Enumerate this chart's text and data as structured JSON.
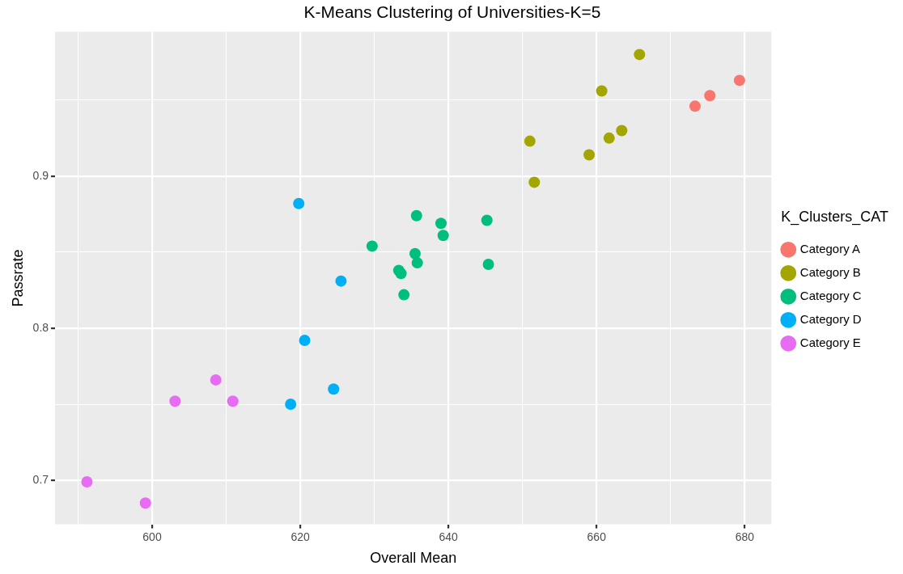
{
  "chart_data": {
    "type": "scatter",
    "title": "K-Means Clustering of Universities-K=5",
    "xlabel": "Overall Mean",
    "ylabel": "Passrate",
    "legend_title": "K_Clusters_CAT",
    "legend": "right",
    "marker": "circle",
    "grid": true,
    "xlim": [
      586.9,
      683.6
    ],
    "ylim": [
      0.671,
      0.995
    ],
    "xticks": [
      {
        "value": 590,
        "label": null
      },
      600,
      {
        "value": 610,
        "label": null
      },
      620,
      {
        "value": 630,
        "label": null
      },
      640,
      {
        "value": 650,
        "label": null
      },
      660,
      {
        "value": 670,
        "label": null
      },
      680
    ],
    "yticks": [
      {
        "value": 0.7,
        "label": "0.7"
      },
      {
        "value": 0.75,
        "label": null
      },
      {
        "value": 0.8,
        "label": "0.8"
      },
      {
        "value": 0.85,
        "label": null
      },
      {
        "value": 0.9,
        "label": "0.9"
      },
      {
        "value": 0.95,
        "label": null
      }
    ],
    "series": [
      {
        "name": "Category A",
        "color": "#f8766d",
        "x": [
          673.3,
          675.3,
          679.3
        ],
        "values": [
          0.946,
          0.953,
          0.963
        ]
      },
      {
        "name": "Category B",
        "color": "#a3a500",
        "x": [
          665.8,
          660.7,
          663.4,
          661.7,
          651.0,
          659.0,
          651.6
        ],
        "values": [
          0.98,
          0.956,
          0.93,
          0.925,
          0.923,
          0.914,
          0.896
        ]
      },
      {
        "name": "Category C",
        "color": "#00bf7d",
        "x": [
          635.7,
          639.0,
          645.2,
          639.3,
          629.7,
          635.5,
          635.8,
          645.4,
          633.3,
          633.6,
          634.0
        ],
        "values": [
          0.874,
          0.869,
          0.871,
          0.861,
          0.854,
          0.849,
          0.843,
          0.842,
          0.838,
          0.836,
          0.822
        ]
      },
      {
        "name": "Category D",
        "color": "#00b0f6",
        "x": [
          619.8,
          625.5,
          620.6,
          624.5,
          618.7
        ],
        "values": [
          0.882,
          0.831,
          0.792,
          0.76,
          0.75
        ]
      },
      {
        "name": "Category E",
        "color": "#e76bf3",
        "x": [
          608.6,
          603.1,
          610.9,
          591.2,
          599.1
        ],
        "values": [
          0.766,
          0.752,
          0.752,
          0.699,
          0.685
        ]
      }
    ]
  }
}
